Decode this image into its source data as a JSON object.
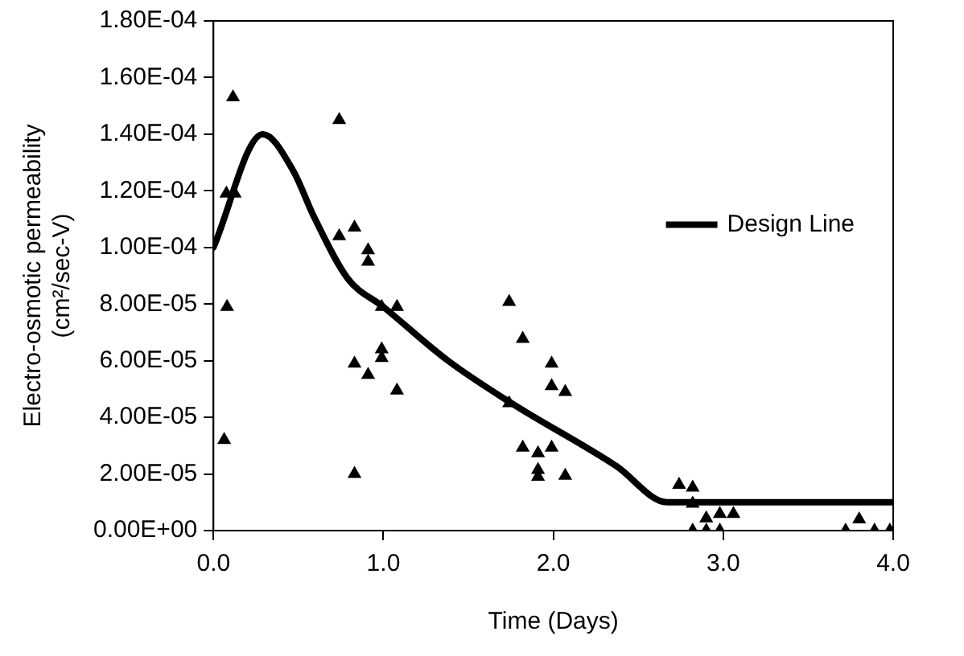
{
  "chart_data": {
    "type": "scatter",
    "xlabel": "Time (Days)",
    "ylabel": "Electro-osmotic permeability\n(cm²/sec-V)",
    "xlim": [
      0,
      4
    ],
    "xticks": [
      {
        "value": 0,
        "label": "0.0"
      },
      {
        "value": 1,
        "label": "1.0"
      },
      {
        "value": 2,
        "label": "2.0"
      },
      {
        "value": 3,
        "label": "3.0"
      },
      {
        "value": 4,
        "label": "4.0"
      }
    ],
    "ylim": [
      0,
      0.00018
    ],
    "yticks": [
      {
        "value": 0,
        "label": "0.00E+00"
      },
      {
        "value": 2e-05,
        "label": "2.00E-05"
      },
      {
        "value": 4e-05,
        "label": "4.00E-05"
      },
      {
        "value": 6e-05,
        "label": "6.00E-05"
      },
      {
        "value": 8e-05,
        "label": "8.00E-05"
      },
      {
        "value": 0.0001,
        "label": "1.00E-04"
      },
      {
        "value": 0.00012,
        "label": "1.20E-04"
      },
      {
        "value": 0.00014,
        "label": "1.40E-04"
      },
      {
        "value": 0.00016,
        "label": "1.60E-04"
      },
      {
        "value": 0.00018,
        "label": "1.80E-04"
      }
    ],
    "grid": false,
    "legend": "right",
    "marker": "triangle",
    "series": [
      {
        "color": "#000000",
        "x": [
          0.115,
          0.076,
          0.125,
          0.08,
          0.063,
          0.74,
          0.74,
          0.83,
          0.91,
          0.91,
          0.99,
          1.08,
          0.83,
          0.91,
          0.99,
          0.99,
          1.08,
          0.83,
          1.74,
          1.82,
          1.99,
          1.99,
          2.07,
          1.74,
          1.82,
          1.91,
          1.99,
          1.91,
          1.91,
          2.07,
          2.74,
          2.82,
          2.82,
          2.9,
          2.98,
          3.06,
          2.82,
          2.9,
          2.98,
          3.72,
          3.8,
          3.89,
          3.98
        ],
        "values": [
          0.000153,
          0.000119,
          0.000119,
          7.9e-05,
          3.2e-05,
          0.000145,
          0.000104,
          0.000107,
          9.9e-05,
          9.5e-05,
          7.9e-05,
          7.9e-05,
          5.9e-05,
          5.5e-05,
          6.4e-05,
          6.1e-05,
          4.95e-05,
          2e-05,
          8.08e-05,
          6.77e-05,
          5.9e-05,
          5.1e-05,
          4.9e-05,
          4.5e-05,
          2.93e-05,
          2.73e-05,
          2.93e-05,
          2.14e-05,
          1.9e-05,
          1.94e-05,
          1.62e-05,
          1.52e-05,
          9.5e-06,
          4.3e-06,
          5.9e-06,
          5.9e-06,
          0,
          0,
          0,
          0,
          4e-06,
          0,
          0
        ]
      },
      {
        "type": "line",
        "name": "Design Line",
        "color": "#000000",
        "line_style": "solid",
        "marker": "none",
        "x": [
          0,
          0.29,
          0.47,
          0.59,
          0.79,
          1.0,
          1.38,
          1.74,
          2.37,
          2.67,
          4.0
        ],
        "values": [
          0.0001,
          0.00014,
          0.000127,
          0.000111,
          8.9e-05,
          7.9e-05,
          6e-05,
          4.55e-05,
          2.28e-05,
          1e-05,
          1e-05
        ]
      }
    ]
  }
}
